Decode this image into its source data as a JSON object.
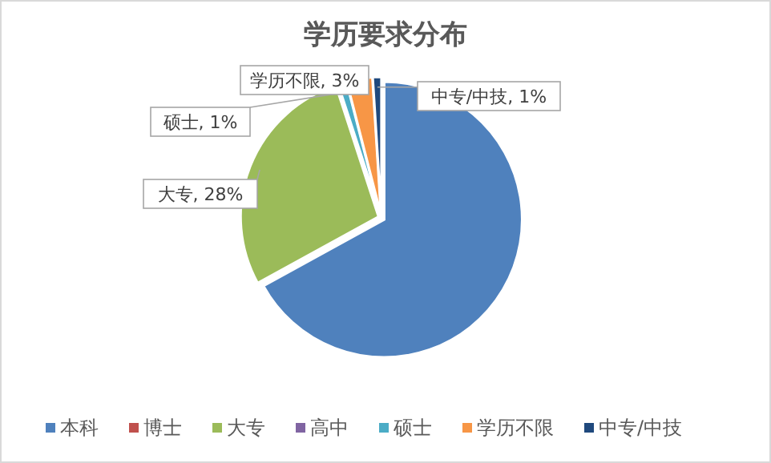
{
  "chart_data": {
    "type": "pie",
    "title": "学历要求分布",
    "categories": [
      "本科",
      "博士",
      "大专",
      "高中",
      "硕士",
      "学历不限",
      "中专/中技"
    ],
    "values": [
      67,
      0,
      28,
      0,
      1,
      3,
      1
    ],
    "colors": [
      "#4f81bd",
      "#c0504d",
      "#9bbb59",
      "#8064a2",
      "#4bacc6",
      "#f79646",
      "#1f497d"
    ],
    "value_labels": [
      null,
      null,
      "大专, 28%",
      null,
      "硕士, 1%",
      "学历不限, 3%",
      "中专/中技, 1%"
    ],
    "legend": "bottom"
  }
}
